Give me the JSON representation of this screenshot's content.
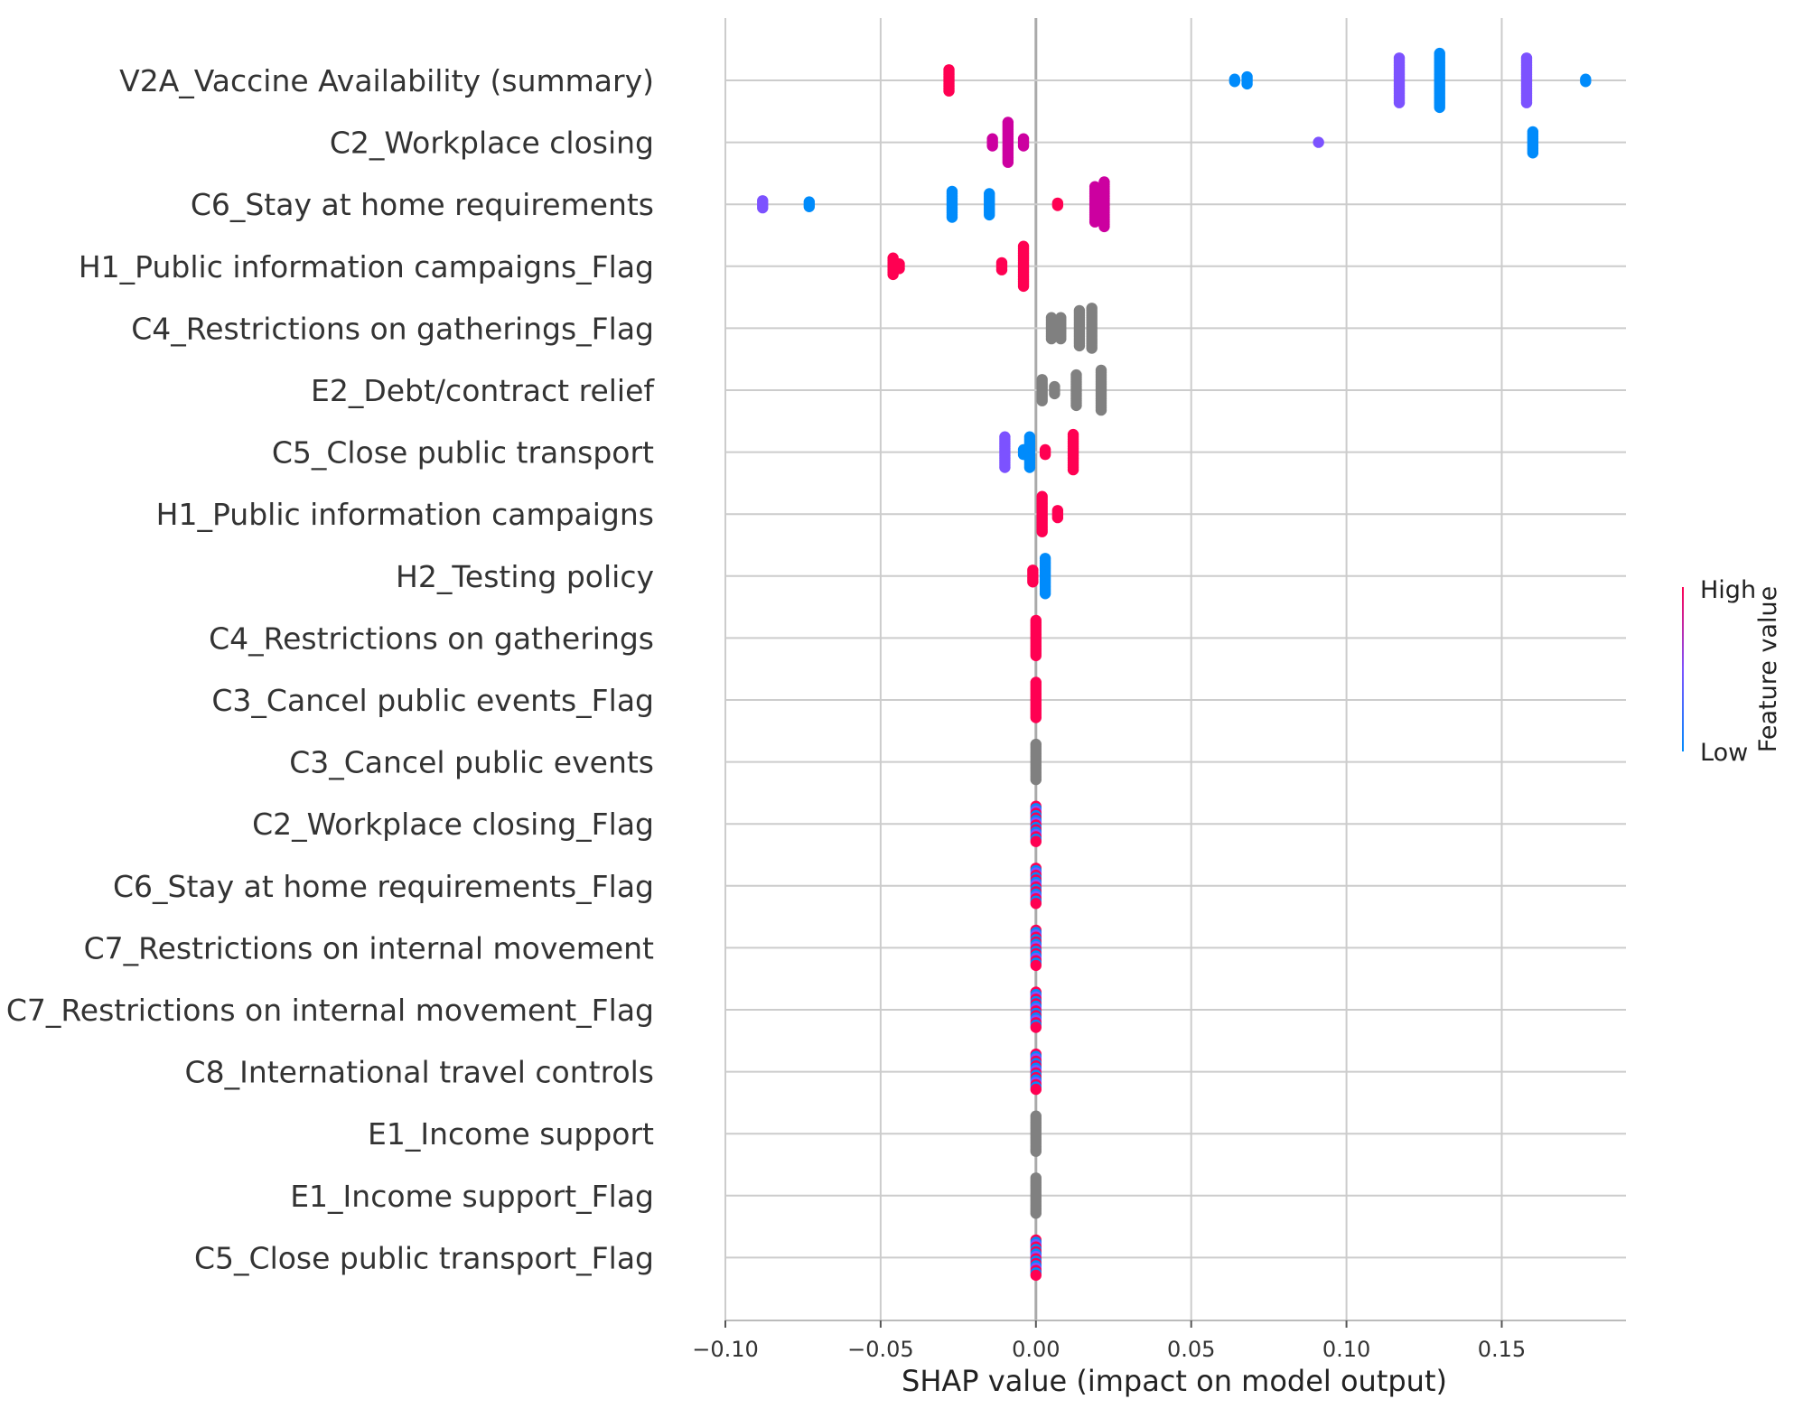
{
  "colors": {
    "high": "#ff0052",
    "low": "#008bfb",
    "mid": "#7c52ff",
    "magenta": "#cc00a0",
    "gray": "#808080",
    "grid": "#cccccc",
    "zero_line": "#aaaaaa"
  },
  "chart_data": {
    "type": "scatter",
    "subtype": "shap-beeswarm",
    "xlabel": "SHAP value (impact on model output)",
    "xlim": [
      -0.1,
      0.19
    ],
    "xticks": [
      -0.1,
      -0.05,
      0.0,
      0.05,
      0.1,
      0.15
    ],
    "xtick_labels": [
      "−0.10",
      "−0.05",
      "0.00",
      "0.05",
      "0.10",
      "0.15"
    ],
    "grid": true,
    "colorbar": {
      "title": "Feature value",
      "high_label": "High",
      "low_label": "Low"
    },
    "features": [
      {
        "name": "V2A_Vaccine Availability (summary)",
        "points": [
          {
            "x": -0.028,
            "c": "high",
            "n": 10
          },
          {
            "x": 0.064,
            "c": "low",
            "n": 2
          },
          {
            "x": 0.068,
            "c": "low",
            "n": 4
          },
          {
            "x": 0.117,
            "c": "mid",
            "n": 20
          },
          {
            "x": 0.13,
            "c": "low",
            "n": 24
          },
          {
            "x": 0.158,
            "c": "mid",
            "n": 20
          },
          {
            "x": 0.177,
            "c": "low",
            "n": 2
          }
        ]
      },
      {
        "name": "C2_Workplace closing",
        "points": [
          {
            "x": -0.014,
            "c": "magenta",
            "n": 4
          },
          {
            "x": -0.009,
            "c": "magenta",
            "n": 18
          },
          {
            "x": -0.004,
            "c": "magenta",
            "n": 4
          },
          {
            "x": 0.091,
            "c": "mid",
            "n": 1
          },
          {
            "x": 0.16,
            "c": "low",
            "n": 10
          }
        ]
      },
      {
        "name": "C6_Stay at home requirements",
        "points": [
          {
            "x": -0.088,
            "c": "mid",
            "n": 4
          },
          {
            "x": -0.073,
            "c": "low",
            "n": 3
          },
          {
            "x": -0.027,
            "c": "low",
            "n": 12
          },
          {
            "x": -0.015,
            "c": "low",
            "n": 10
          },
          {
            "x": 0.007,
            "c": "high",
            "n": 2
          },
          {
            "x": 0.019,
            "c": "magenta",
            "n": 16
          },
          {
            "x": 0.022,
            "c": "magenta",
            "n": 20
          }
        ]
      },
      {
        "name": "H1_Public information campaigns_Flag",
        "points": [
          {
            "x": -0.046,
            "c": "high",
            "n": 8
          },
          {
            "x": -0.044,
            "c": "high",
            "n": 3
          },
          {
            "x": -0.011,
            "c": "high",
            "n": 4
          },
          {
            "x": -0.004,
            "c": "high",
            "n": 18
          }
        ]
      },
      {
        "name": "C4_Restrictions on gatherings_Flag",
        "points": [
          {
            "x": 0.005,
            "c": "gray",
            "n": 10
          },
          {
            "x": 0.008,
            "c": "gray",
            "n": 10
          },
          {
            "x": 0.014,
            "c": "gray",
            "n": 16
          },
          {
            "x": 0.018,
            "c": "gray",
            "n": 18
          }
        ]
      },
      {
        "name": "E2_Debt/contract relief",
        "points": [
          {
            "x": 0.002,
            "c": "gray",
            "n": 10
          },
          {
            "x": 0.006,
            "c": "gray",
            "n": 4
          },
          {
            "x": 0.013,
            "c": "gray",
            "n": 14
          },
          {
            "x": 0.021,
            "c": "gray",
            "n": 18
          }
        ]
      },
      {
        "name": "C5_Close public transport",
        "points": [
          {
            "x": -0.01,
            "c": "mid",
            "n": 14
          },
          {
            "x": -0.004,
            "c": "low",
            "n": 3
          },
          {
            "x": -0.002,
            "c": "low",
            "n": 14
          },
          {
            "x": 0.003,
            "c": "high",
            "n": 3
          },
          {
            "x": 0.012,
            "c": "high",
            "n": 16
          }
        ]
      },
      {
        "name": "H1_Public information campaigns",
        "points": [
          {
            "x": 0.002,
            "c": "high",
            "n": 16
          },
          {
            "x": 0.007,
            "c": "high",
            "n": 4
          }
        ]
      },
      {
        "name": "H2_Testing policy",
        "points": [
          {
            "x": -0.001,
            "c": "high",
            "n": 6
          },
          {
            "x": 0.003,
            "c": "low",
            "n": 16
          }
        ]
      },
      {
        "name": "C4_Restrictions on gatherings",
        "points": [
          {
            "x": 0.0,
            "c": "high",
            "n": 16
          }
        ]
      },
      {
        "name": "C3_Cancel public events_Flag",
        "points": [
          {
            "x": 0.0,
            "c": "high",
            "n": 16
          }
        ]
      },
      {
        "name": "C3_Cancel public events",
        "points": [
          {
            "x": 0.0,
            "c": "gray",
            "n": 16
          }
        ]
      },
      {
        "name": "C2_Workplace closing_Flag",
        "points": [
          {
            "x": 0.0,
            "c": "mixed",
            "n": 16
          }
        ]
      },
      {
        "name": "C6_Stay at home requirements_Flag",
        "points": [
          {
            "x": 0.0,
            "c": "mixed",
            "n": 16
          }
        ]
      },
      {
        "name": "C7_Restrictions on internal movement",
        "points": [
          {
            "x": 0.0,
            "c": "mixed",
            "n": 16
          }
        ]
      },
      {
        "name": "C7_Restrictions on internal movement_Flag",
        "points": [
          {
            "x": 0.0,
            "c": "mixed",
            "n": 16
          }
        ]
      },
      {
        "name": "C8_International travel controls",
        "points": [
          {
            "x": 0.0,
            "c": "mixed",
            "n": 16
          }
        ]
      },
      {
        "name": "E1_Income support",
        "points": [
          {
            "x": 0.0,
            "c": "gray",
            "n": 16
          }
        ]
      },
      {
        "name": "E1_Income support_Flag",
        "points": [
          {
            "x": 0.0,
            "c": "gray",
            "n": 16
          }
        ]
      },
      {
        "name": "C5_Close public transport_Flag",
        "points": [
          {
            "x": 0.0,
            "c": "mixed",
            "n": 16
          }
        ]
      }
    ]
  }
}
